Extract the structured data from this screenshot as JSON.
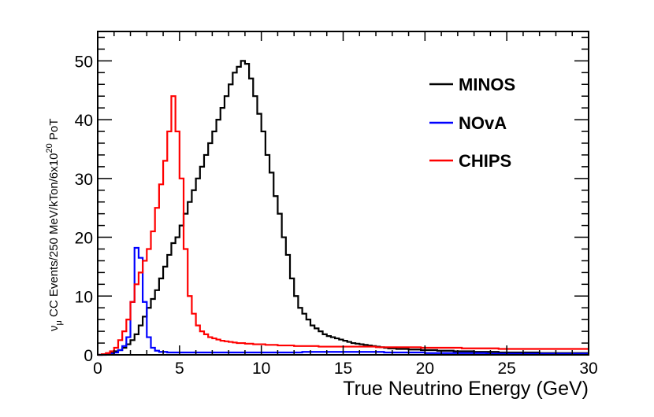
{
  "chart_data": {
    "type": "line",
    "title": "",
    "xlabel": "True Neutrino Energy (GeV)",
    "ylabel_parts": [
      "ν",
      "μ",
      " CC Events/250 MeV/kTon/6x10",
      "20",
      " PoT"
    ],
    "xlim": [
      0,
      30
    ],
    "ylim": [
      0,
      55
    ],
    "xticks": [
      "0",
      "5",
      "10",
      "15",
      "20",
      "25",
      "30"
    ],
    "yticks": [
      "0",
      "10",
      "20",
      "30",
      "40",
      "50"
    ],
    "grid": false,
    "legend_position": "top-right",
    "bin_width": 0.25,
    "series": [
      {
        "name": "MINOS",
        "color": "#000000",
        "values": [
          0.0,
          0.1,
          0.2,
          0.4,
          0.6,
          0.8,
          1.2,
          1.8,
          2.5,
          3.5,
          5,
          6.5,
          8,
          9.5,
          11,
          13,
          15,
          17,
          19,
          20,
          22,
          24,
          26,
          28,
          30,
          32,
          34,
          36,
          38,
          40,
          42,
          44,
          46,
          48,
          49,
          50,
          49.5,
          47,
          44,
          41,
          38,
          34,
          31,
          27,
          24,
          20,
          17,
          13,
          10,
          8,
          7,
          6,
          5,
          4.5,
          4,
          3.5,
          3.2,
          3,
          2.8,
          2.6,
          2.4,
          2.2,
          2.0,
          1.9,
          1.8,
          1.7,
          1.6,
          1.5,
          1.4,
          1.3,
          1.2,
          1.1,
          1.1,
          1.0,
          1.0,
          1.0,
          0.9,
          0.9,
          0.9,
          0.8,
          0.8,
          0.8,
          0.8,
          0.7,
          0.7,
          0.7,
          0.7,
          0.6,
          0.6,
          0.6,
          0.6,
          0.6,
          0.5,
          0.5,
          0.5,
          0.5,
          0.5,
          0.5,
          0.4,
          0.4,
          0.4,
          0.4,
          0.4,
          0.4,
          0.4,
          0.4,
          0.4,
          0.4,
          0.3,
          0.3,
          0.3,
          0.3,
          0.3,
          0.3,
          0.3,
          0.3,
          0.3,
          0.3,
          0.3,
          0.3
        ]
      },
      {
        "name": "NOvA",
        "color": "#0000ff",
        "values": [
          0.0,
          0.0,
          0.1,
          0.2,
          0.4,
          0.8,
          1.5,
          3,
          9,
          18.2,
          16.5,
          9,
          3,
          1.2,
          0.7,
          0.5,
          0.5,
          0.4,
          0.4,
          0.4,
          0.4,
          0.4,
          0.4,
          0.4,
          0.4,
          0.4,
          0.4,
          0.4,
          0.4,
          0.4,
          0.4,
          0.4,
          0.4,
          0.4,
          0.4,
          0.4,
          0.4,
          0.4,
          0.4,
          0.4,
          0.4,
          0.4,
          0.4,
          0.4,
          0.4,
          0.4,
          0.4,
          0.4,
          0.4,
          0.4,
          0.5,
          0.5,
          0.5,
          0.5,
          0.5,
          0.5,
          0.5,
          0.5,
          0.5,
          0.5,
          0.5,
          0.5,
          0.5,
          0.5,
          0.5,
          0.5,
          0.5,
          0.5,
          0.5,
          0.5,
          0.4,
          0.4,
          0.4,
          0.4,
          0.4,
          0.4,
          0.4,
          0.4,
          0.4,
          0.4,
          0.3,
          0.3,
          0.3,
          0.3,
          0.3,
          0.3,
          0.3,
          0.3,
          0.3,
          0.3,
          0.3,
          0.3,
          0.3,
          0.3,
          0.3,
          0.2,
          0.2,
          0.2,
          0.2,
          0.2,
          0.2,
          0.2,
          0.2,
          0.2,
          0.2,
          0.2,
          0.2,
          0.2,
          0.2,
          0.2,
          0.2,
          0.2,
          0.2,
          0.2,
          0.2,
          0.2,
          0.2,
          0.2,
          0.2,
          0.2
        ]
      },
      {
        "name": "CHIPS",
        "color": "#ff0000",
        "values": [
          0.0,
          0.1,
          0.3,
          0.6,
          1.2,
          2.5,
          4,
          6,
          9,
          12,
          14,
          16,
          18,
          21,
          25,
          29,
          33,
          38,
          44,
          38,
          30,
          18,
          10,
          7,
          5,
          4,
          3.5,
          3,
          2.8,
          2.6,
          2.4,
          2.3,
          2.2,
          2.1,
          2.0,
          2.0,
          1.9,
          1.9,
          1.8,
          1.8,
          1.8,
          1.7,
          1.7,
          1.7,
          1.6,
          1.6,
          1.6,
          1.6,
          1.5,
          1.5,
          1.5,
          1.5,
          1.5,
          1.5,
          1.4,
          1.4,
          1.4,
          1.4,
          1.4,
          1.4,
          1.4,
          1.4,
          1.4,
          1.4,
          1.4,
          1.4,
          1.4,
          1.4,
          1.3,
          1.3,
          1.3,
          1.3,
          1.3,
          1.3,
          1.3,
          1.3,
          1.3,
          1.3,
          1.3,
          1.2,
          1.2,
          1.2,
          1.2,
          1.2,
          1.2,
          1.2,
          1.2,
          1.2,
          1.2,
          1.1,
          1.1,
          1.1,
          1.1,
          1.1,
          1.1,
          1.1,
          1.1,
          1.1,
          1.0,
          1.0,
          1.0,
          1.0,
          1.0,
          1.0,
          1.0,
          1.0,
          1.0,
          1.0,
          1.0,
          1.0,
          1.0,
          1.0,
          1.0,
          1.0,
          1.0,
          1.0,
          1.0,
          1.0,
          1.0,
          1.0
        ]
      }
    ]
  }
}
